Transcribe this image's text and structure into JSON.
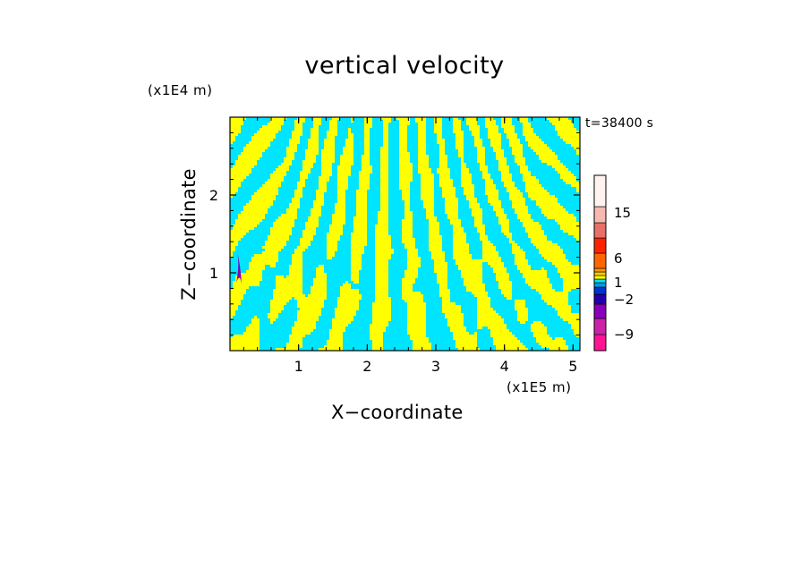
{
  "chart_data": {
    "type": "heatmap",
    "title": "vertical velocity",
    "xlabel": "X−coordinate",
    "ylabel": "Z−coordinate",
    "x_unit_label": "(x1E5 m)",
    "y_unit_label": "(x1E4 m)",
    "annotation": "t=38400 s",
    "x_ticks": [
      "1",
      "2",
      "3",
      "4",
      "5"
    ],
    "y_ticks": [
      "1",
      "2"
    ],
    "xlim": [
      0,
      5.1
    ],
    "ylim": [
      0,
      3
    ],
    "dominant_values": {
      "negative_band": "−2 to 0",
      "positive_band": "0 to 1"
    },
    "colorbar": {
      "tick_labels": [
        "15",
        "6",
        "1",
        "−2",
        "−9"
      ],
      "bands": [
        {
          "color": "#ff1493"
        },
        {
          "color": "#cc22aa"
        },
        {
          "color": "#8800bb"
        },
        {
          "color": "#2200aa"
        },
        {
          "color": "#0033cc"
        },
        {
          "color": "#0099ee"
        },
        {
          "color": "#00e5ff"
        },
        {
          "color": "#ffff00"
        },
        {
          "color": "#ffcc00"
        },
        {
          "color": "#ff9900"
        },
        {
          "color": "#ff6600"
        },
        {
          "color": "#ff2200"
        },
        {
          "color": "#e8706a"
        },
        {
          "color": "#f7b8b0"
        },
        {
          "color": "#fff3ef"
        }
      ]
    },
    "field_colors": {
      "positive": "#ffff00",
      "negative": "#00e5ff",
      "outline": "#ffee88"
    }
  }
}
